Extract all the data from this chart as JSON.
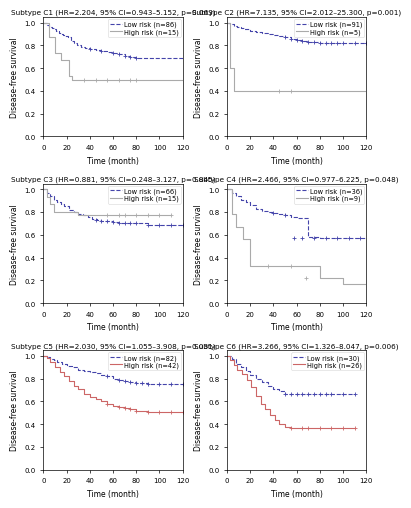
{
  "subplots": [
    {
      "title": "Subtype C1 (HR=2.204, 95% CI=0.943–5.152, p=0.063)",
      "low_risk_label": "Low risk (n=86)",
      "high_risk_label": "High risk (n=15)",
      "low_risk_times": [
        0,
        3,
        5,
        7,
        9,
        11,
        13,
        15,
        17,
        19,
        21,
        24,
        26,
        29,
        32,
        36,
        40,
        45,
        50,
        55,
        60,
        65,
        70,
        75,
        80,
        120
      ],
      "low_risk_surv": [
        1.0,
        0.98,
        0.96,
        0.95,
        0.94,
        0.93,
        0.91,
        0.9,
        0.89,
        0.88,
        0.87,
        0.84,
        0.82,
        0.8,
        0.79,
        0.78,
        0.77,
        0.76,
        0.75,
        0.74,
        0.73,
        0.72,
        0.71,
        0.7,
        0.69,
        0.69
      ],
      "high_risk_times": [
        0,
        5,
        10,
        15,
        22,
        25,
        30,
        120
      ],
      "high_risk_surv": [
        1.0,
        0.87,
        0.73,
        0.67,
        0.53,
        0.5,
        0.5,
        0.5
      ],
      "low_risk_censor_times": [
        40,
        50,
        60,
        65,
        70,
        75,
        80
      ],
      "low_risk_censor_surv": [
        0.77,
        0.75,
        0.73,
        0.72,
        0.71,
        0.7,
        0.69
      ],
      "high_risk_censor_times": [
        35,
        45,
        55,
        65,
        75,
        80
      ],
      "high_risk_censor_surv": [
        0.5,
        0.5,
        0.5,
        0.5,
        0.5,
        0.5
      ]
    },
    {
      "title": "Subtype C2 (HR=7.135, 95% CI=2.012–25.300, p=0.001)",
      "low_risk_label": "Low risk (n=91)",
      "high_risk_label": "High risk (n=5)",
      "low_risk_times": [
        0,
        3,
        6,
        9,
        12,
        15,
        20,
        25,
        30,
        35,
        40,
        45,
        50,
        55,
        60,
        65,
        70,
        75,
        80,
        85,
        90,
        95,
        100,
        110,
        120
      ],
      "low_risk_surv": [
        1.0,
        0.99,
        0.97,
        0.96,
        0.95,
        0.94,
        0.93,
        0.92,
        0.91,
        0.9,
        0.89,
        0.88,
        0.87,
        0.86,
        0.85,
        0.84,
        0.83,
        0.83,
        0.82,
        0.82,
        0.82,
        0.82,
        0.82,
        0.82,
        0.82
      ],
      "high_risk_times": [
        0,
        3,
        6,
        9,
        40,
        65,
        120
      ],
      "high_risk_surv": [
        1.0,
        0.6,
        0.4,
        0.4,
        0.4,
        0.4,
        0.4
      ],
      "low_risk_censor_times": [
        50,
        55,
        60,
        65,
        70,
        75,
        80,
        85,
        90,
        95,
        100,
        110,
        120
      ],
      "low_risk_censor_surv": [
        0.87,
        0.86,
        0.85,
        0.84,
        0.83,
        0.83,
        0.82,
        0.82,
        0.82,
        0.82,
        0.82,
        0.82,
        0.82
      ],
      "high_risk_censor_times": [
        45,
        55
      ],
      "high_risk_censor_surv": [
        0.4,
        0.4
      ]
    },
    {
      "title": "Subtype C3 (HR=0.881, 95% CI=0.248–3.127, p=0.845)",
      "low_risk_label": "Low risk (n=66)",
      "high_risk_label": "High risk (n=15)",
      "low_risk_times": [
        0,
        3,
        6,
        9,
        12,
        15,
        18,
        22,
        26,
        30,
        34,
        38,
        42,
        46,
        50,
        55,
        60,
        65,
        70,
        75,
        80,
        90,
        100,
        110,
        120
      ],
      "low_risk_surv": [
        1.0,
        0.97,
        0.94,
        0.91,
        0.89,
        0.87,
        0.85,
        0.82,
        0.8,
        0.78,
        0.77,
        0.76,
        0.74,
        0.73,
        0.72,
        0.72,
        0.71,
        0.7,
        0.7,
        0.7,
        0.7,
        0.69,
        0.69,
        0.69,
        0.69
      ],
      "high_risk_times": [
        0,
        3,
        6,
        9,
        12,
        20,
        30,
        40,
        50,
        60,
        80,
        100,
        110
      ],
      "high_risk_surv": [
        1.0,
        0.93,
        0.87,
        0.8,
        0.8,
        0.8,
        0.77,
        0.77,
        0.77,
        0.77,
        0.77,
        0.77,
        0.77
      ],
      "low_risk_censor_times": [
        45,
        50,
        55,
        60,
        65,
        70,
        75,
        80,
        90,
        100,
        110,
        120
      ],
      "low_risk_censor_surv": [
        0.73,
        0.72,
        0.72,
        0.71,
        0.7,
        0.7,
        0.7,
        0.7,
        0.69,
        0.69,
        0.69,
        0.69
      ],
      "high_risk_censor_times": [
        55,
        65,
        70,
        80,
        90,
        100,
        110
      ],
      "high_risk_censor_surv": [
        0.77,
        0.77,
        0.77,
        0.77,
        0.77,
        0.77,
        0.77
      ]
    },
    {
      "title": "Subtype C4 (HR=2.466, 95% CI=0.977–6.225, p=0.048)",
      "low_risk_label": "Low risk (n=36)",
      "high_risk_label": "High risk (n=9)",
      "low_risk_times": [
        0,
        4,
        8,
        12,
        16,
        20,
        25,
        30,
        35,
        40,
        45,
        50,
        55,
        60,
        70,
        80,
        90,
        100,
        110,
        120
      ],
      "low_risk_surv": [
        1.0,
        0.97,
        0.94,
        0.91,
        0.89,
        0.86,
        0.83,
        0.81,
        0.8,
        0.79,
        0.78,
        0.77,
        0.76,
        0.75,
        0.58,
        0.57,
        0.57,
        0.57,
        0.57,
        0.57
      ],
      "high_risk_times": [
        0,
        4,
        8,
        14,
        20,
        60,
        80,
        100,
        120
      ],
      "high_risk_surv": [
        1.0,
        0.78,
        0.67,
        0.56,
        0.33,
        0.33,
        0.22,
        0.17,
        0.17
      ],
      "low_risk_censor_times": [
        40,
        50,
        58,
        65,
        75,
        85,
        95,
        105,
        115
      ],
      "low_risk_censor_surv": [
        0.79,
        0.77,
        0.57,
        0.57,
        0.57,
        0.57,
        0.57,
        0.57,
        0.57
      ],
      "high_risk_censor_times": [
        35,
        55,
        68
      ],
      "high_risk_censor_surv": [
        0.33,
        0.33,
        0.22
      ]
    },
    {
      "title": "Subtype C5 (HR=2.030, 95% CI=1.055–3.908, p=0.031)",
      "low_risk_label": "Low risk (n=82)",
      "high_risk_label": "High risk (n=42)",
      "low_risk_times": [
        0,
        3,
        6,
        9,
        12,
        16,
        20,
        25,
        30,
        35,
        40,
        45,
        50,
        55,
        60,
        65,
        70,
        75,
        80,
        85,
        90,
        100,
        110,
        120
      ],
      "low_risk_surv": [
        1.0,
        0.99,
        0.97,
        0.96,
        0.95,
        0.93,
        0.91,
        0.9,
        0.88,
        0.87,
        0.86,
        0.85,
        0.83,
        0.82,
        0.8,
        0.79,
        0.78,
        0.77,
        0.76,
        0.76,
        0.75,
        0.75,
        0.75,
        0.75
      ],
      "high_risk_times": [
        0,
        3,
        6,
        10,
        14,
        18,
        22,
        26,
        30,
        35,
        40,
        45,
        50,
        55,
        60,
        65,
        70,
        75,
        80,
        90,
        100,
        110,
        120
      ],
      "high_risk_surv": [
        1.0,
        0.98,
        0.95,
        0.9,
        0.86,
        0.82,
        0.78,
        0.74,
        0.71,
        0.67,
        0.64,
        0.62,
        0.6,
        0.58,
        0.56,
        0.55,
        0.54,
        0.53,
        0.52,
        0.51,
        0.51,
        0.51,
        0.51
      ],
      "low_risk_censor_times": [
        55,
        65,
        70,
        75,
        80,
        85,
        90,
        100,
        110,
        120
      ],
      "low_risk_censor_surv": [
        0.82,
        0.79,
        0.78,
        0.77,
        0.76,
        0.76,
        0.75,
        0.75,
        0.75,
        0.75
      ],
      "high_risk_censor_times": [
        55,
        65,
        70,
        75,
        80,
        90,
        100,
        110,
        120
      ],
      "high_risk_censor_surv": [
        0.58,
        0.55,
        0.54,
        0.53,
        0.52,
        0.51,
        0.51,
        0.51,
        0.51
      ]
    },
    {
      "title": "Subtype C6 (HR=3.266, 95% CI=1.326–8.047, p=0.006)",
      "low_risk_label": "Low risk (n=30)",
      "high_risk_label": "High risk (n=26)",
      "low_risk_times": [
        0,
        4,
        8,
        12,
        16,
        20,
        25,
        30,
        35,
        40,
        45,
        50,
        55,
        60,
        65,
        70,
        75,
        80,
        85,
        90,
        100,
        110
      ],
      "low_risk_surv": [
        1.0,
        0.97,
        0.93,
        0.9,
        0.87,
        0.83,
        0.8,
        0.77,
        0.74,
        0.71,
        0.69,
        0.67,
        0.67,
        0.67,
        0.67,
        0.67,
        0.67,
        0.67,
        0.67,
        0.67,
        0.67,
        0.67
      ],
      "high_risk_times": [
        0,
        3,
        6,
        9,
        13,
        17,
        21,
        25,
        29,
        33,
        37,
        41,
        45,
        50,
        55,
        60,
        65,
        70,
        80,
        90,
        100,
        110
      ],
      "high_risk_surv": [
        1.0,
        0.96,
        0.92,
        0.88,
        0.84,
        0.79,
        0.73,
        0.65,
        0.58,
        0.53,
        0.48,
        0.44,
        0.4,
        0.38,
        0.37,
        0.37,
        0.37,
        0.37,
        0.37,
        0.37,
        0.37,
        0.37
      ],
      "low_risk_censor_times": [
        50,
        55,
        60,
        65,
        70,
        75,
        80,
        85,
        90,
        100,
        110
      ],
      "low_risk_censor_surv": [
        0.67,
        0.67,
        0.67,
        0.67,
        0.67,
        0.67,
        0.67,
        0.67,
        0.67,
        0.67,
        0.67
      ],
      "high_risk_censor_times": [
        55,
        65,
        70,
        80,
        90,
        100,
        110
      ],
      "high_risk_censor_surv": [
        0.37,
        0.37,
        0.37,
        0.37,
        0.37,
        0.37,
        0.37
      ]
    }
  ],
  "low_risk_color": "#4444AA",
  "high_risk_color": "#AAAAAA",
  "high_risk_color_56": "#CC6666",
  "low_risk_linestyle": "--",
  "high_risk_linestyle": "-",
  "ylabel": "Disease-free survival",
  "xlabel": "Time (month)",
  "xlim": [
    0,
    120
  ],
  "ylim": [
    0.0,
    1.05
  ],
  "yticks": [
    0.0,
    0.2,
    0.4,
    0.6,
    0.8,
    1.0
  ],
  "xticks": [
    0,
    20,
    40,
    60,
    80,
    100,
    120
  ],
  "title_fontsize": 5.2,
  "label_fontsize": 5.5,
  "tick_fontsize": 5,
  "legend_fontsize": 4.8
}
